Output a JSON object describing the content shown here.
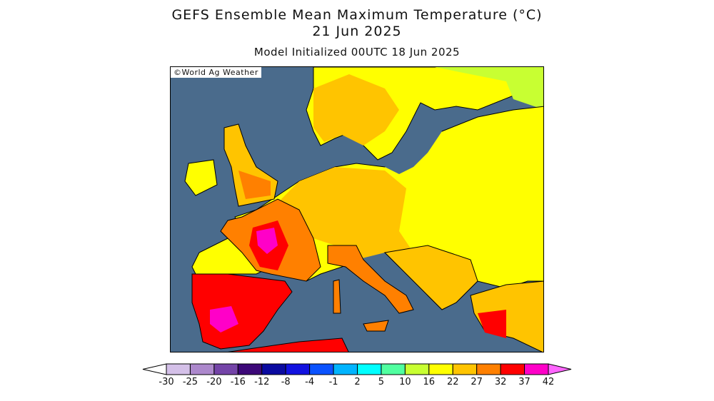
{
  "header": {
    "title": "GEFS Ensemble Mean Maximum Temperature (°C)",
    "valid_date": "21 Jun 2025",
    "init": "Model Initialized 00UTC 18 Jun 2025"
  },
  "map": {
    "credit": "©World Ag Weather",
    "region": "Europe",
    "sea_color": "#4a6b8c"
  },
  "colorbar": {
    "labels": [
      "-30",
      "-25",
      "-20",
      "-16",
      "-12",
      "-8",
      "-4",
      "-1",
      "2",
      "5",
      "10",
      "16",
      "22",
      "27",
      "32",
      "37",
      "42"
    ],
    "colors": [
      "#d4c0e8",
      "#ac88cc",
      "#7444a8",
      "#3c0878",
      "#0a0aa0",
      "#1212e0",
      "#0a52ff",
      "#00b4ff",
      "#00ffff",
      "#50ffa0",
      "#c8ff32",
      "#ffff00",
      "#ffc400",
      "#ff8000",
      "#ff0000",
      "#ff00c8"
    ],
    "over_color": "#ff66ff",
    "under_color": "#ffffff"
  }
}
